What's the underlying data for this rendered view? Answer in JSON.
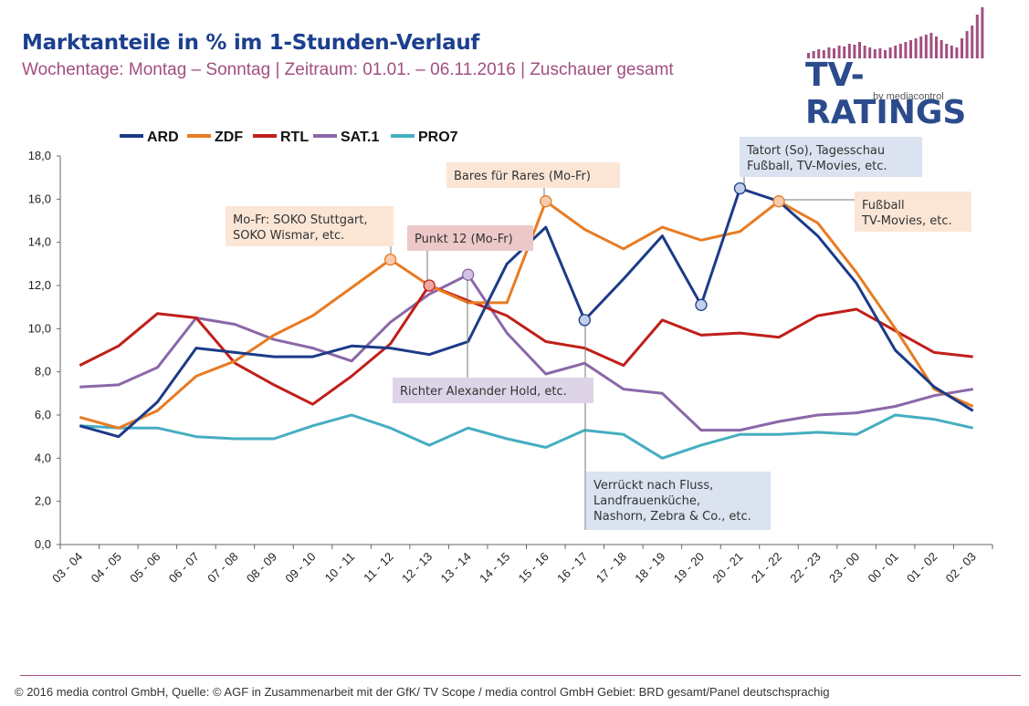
{
  "header": {
    "title": "Marktanteile in % im 1-Stunden-Verlauf",
    "subtitle": "Wochentage: Montag – Sonntag | Zeitraum: 01.01. – 06.11.2016 | Zuschauer gesamt"
  },
  "logo": {
    "text": "TV-RATINGS",
    "byline": "by mediacontrol"
  },
  "footer": {
    "text": "© 2016 media control GmbH,   Quelle: © AGF in Zusammenarbeit mit der GfK/ TV Scope / media control GmbH Gebiet: BRD gesamt/Panel deutschsprachig"
  },
  "colors": {
    "ARD": "#1c3b87",
    "ZDF": "#e87b22",
    "RTL": "#c01f1a",
    "SAT.1": "#8a68a8",
    "PRO7": "#45aec0",
    "title": "#1c3f8f",
    "subtitle": "#a24f7f"
  },
  "chart_data": {
    "type": "line",
    "title": "Marktanteile in % im 1-Stunden-Verlauf",
    "xlabel": "",
    "ylabel": "",
    "ylim": [
      0,
      18
    ],
    "yticks": [
      "0,0",
      "2,0",
      "4,0",
      "6,0",
      "8,0",
      "10,0",
      "12,0",
      "14,0",
      "16,0",
      "18,0"
    ],
    "grid": false,
    "legend_position": "top-left",
    "categories": [
      "03 - 04",
      "04 - 05",
      "05 - 06",
      "06 - 07",
      "07 - 08",
      "08 - 09",
      "09 - 10",
      "10 - 11",
      "11 - 12",
      "12 - 13",
      "13 - 14",
      "14 - 15",
      "15 - 16",
      "16 - 17",
      "17 - 18",
      "18 - 19",
      "19 - 20",
      "20 - 21",
      "21 - 22",
      "22 - 23",
      "23 - 00",
      "00 - 01",
      "01 - 02",
      "02 - 03"
    ],
    "series": [
      {
        "name": "ARD",
        "values": [
          5.5,
          5.0,
          6.6,
          9.1,
          8.9,
          8.7,
          8.7,
          9.2,
          9.1,
          8.8,
          9.4,
          13.0,
          14.7,
          10.4,
          12.3,
          14.3,
          11.1,
          16.5,
          15.9,
          14.3,
          12.1,
          9.0,
          7.3,
          6.2
        ]
      },
      {
        "name": "ZDF",
        "values": [
          5.9,
          5.4,
          6.2,
          7.8,
          8.5,
          9.7,
          10.6,
          11.9,
          13.2,
          12.0,
          11.2,
          11.2,
          15.9,
          14.6,
          13.7,
          14.7,
          14.1,
          14.5,
          15.9,
          14.9,
          12.6,
          10.0,
          7.2,
          6.4
        ]
      },
      {
        "name": "RTL",
        "values": [
          8.3,
          9.2,
          10.7,
          10.5,
          8.4,
          7.4,
          6.5,
          7.8,
          9.3,
          12.0,
          11.3,
          10.6,
          9.4,
          9.1,
          8.3,
          10.4,
          9.7,
          9.8,
          9.6,
          10.6,
          10.9,
          9.9,
          8.9,
          8.7
        ]
      },
      {
        "name": "SAT.1",
        "values": [
          7.3,
          7.4,
          8.2,
          10.5,
          10.2,
          9.5,
          9.1,
          8.5,
          10.3,
          11.6,
          12.5,
          9.8,
          7.9,
          8.4,
          7.2,
          7.0,
          5.3,
          5.3,
          5.7,
          6.0,
          6.1,
          6.4,
          6.9,
          7.2
        ]
      },
      {
        "name": "PRO7",
        "values": [
          5.5,
          5.4,
          5.4,
          5.0,
          4.9,
          4.9,
          5.5,
          6.0,
          5.4,
          4.6,
          5.4,
          4.9,
          4.5,
          5.3,
          5.1,
          4.0,
          4.6,
          5.1,
          5.1,
          5.2,
          5.1,
          6.0,
          5.8,
          5.4
        ]
      }
    ],
    "markers": [
      {
        "series": "ZDF",
        "index": 8
      },
      {
        "series": "RTL",
        "index": 9
      },
      {
        "series": "SAT.1",
        "index": 10
      },
      {
        "series": "ZDF",
        "index": 12
      },
      {
        "series": "ARD",
        "index": 13
      },
      {
        "series": "ARD",
        "index": 16
      },
      {
        "series": "ARD",
        "index": 17
      },
      {
        "series": "ZDF",
        "index": 18
      }
    ],
    "annotations": [
      {
        "id": "soko",
        "lines": [
          "Mo-Fr: SOKO Stuttgart,",
          "SOKO Wismar, etc."
        ],
        "fill": "#fbe6d6"
      },
      {
        "id": "punkt12",
        "lines": [
          "Punkt 12 (Mo-Fr)"
        ],
        "fill": "#ecc8c8"
      },
      {
        "id": "bares",
        "lines": [
          "Bares für Rares (Mo-Fr)"
        ],
        "fill": "#fbe6d6"
      },
      {
        "id": "tatort",
        "lines": [
          "Tatort (So), Tagesschau",
          "Fußball, TV-Movies, etc."
        ],
        "fill": "#dae3ef"
      },
      {
        "id": "fussball",
        "lines": [
          "Fußball",
          "TV-Movies, etc."
        ],
        "fill": "#fbe6d6"
      },
      {
        "id": "richter",
        "lines": [
          "Richter Alexander Hold, etc."
        ],
        "fill": "#ddd4e8"
      },
      {
        "id": "verrueckt",
        "lines": [
          "Verrückt nach Fluss,",
          "Landfrauenküche,",
          "Nashorn, Zebra & Co., etc."
        ],
        "fill": "#dae3ef"
      }
    ]
  }
}
